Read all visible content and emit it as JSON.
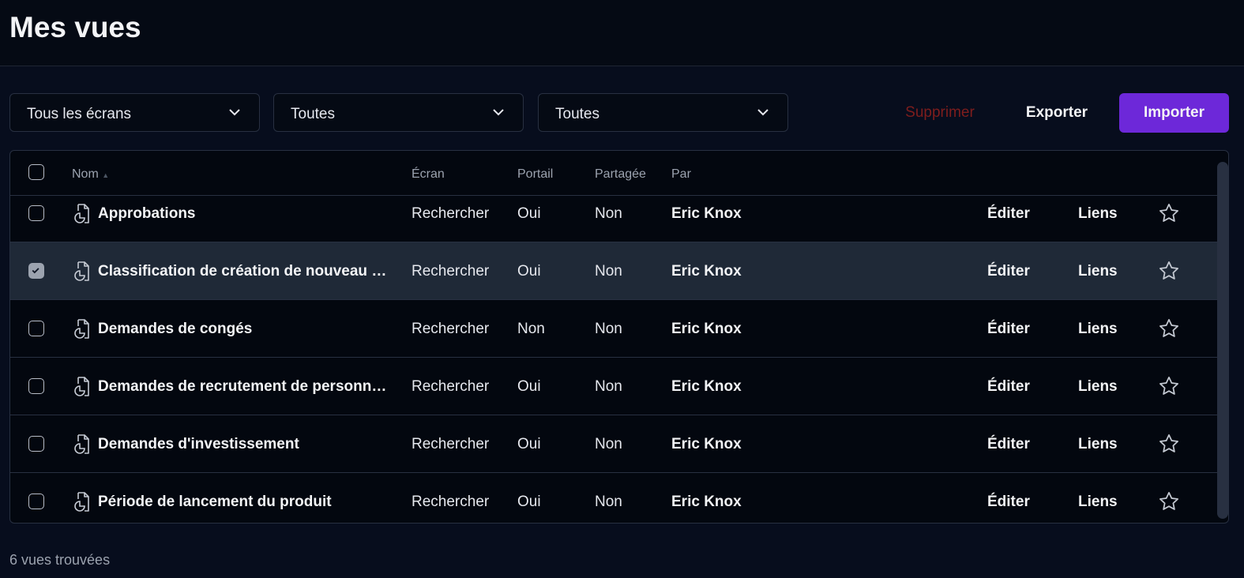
{
  "header": {
    "title": "Mes vues"
  },
  "filters": [
    {
      "value": "Tous les écrans"
    },
    {
      "value": "Toutes"
    },
    {
      "value": "Toutes"
    }
  ],
  "actions": {
    "delete": "Supprimer",
    "export": "Exporter",
    "import": "Importer"
  },
  "colors": {
    "accent": "#6d28d9",
    "danger": "#7f1d1d",
    "selected_row": "#1f2937"
  },
  "table": {
    "columns": {
      "name": "Nom",
      "screen": "Écran",
      "portal": "Portail",
      "shared": "Partagée",
      "by": "Par"
    },
    "sort": {
      "column": "Nom",
      "direction": "ascending"
    },
    "rows": [
      {
        "name": "Approbations",
        "screen": "Rechercher",
        "portal": "Oui",
        "shared": "Non",
        "by": "Eric Knox",
        "edit": "Éditer",
        "links": "Liens",
        "checked": false
      },
      {
        "name": "Classification de création de nouveau p...",
        "screen": "Rechercher",
        "portal": "Oui",
        "shared": "Non",
        "by": "Eric Knox",
        "edit": "Éditer",
        "links": "Liens",
        "checked": true
      },
      {
        "name": "Demandes de congés",
        "screen": "Rechercher",
        "portal": "Non",
        "shared": "Non",
        "by": "Eric Knox",
        "edit": "Éditer",
        "links": "Liens",
        "checked": false
      },
      {
        "name": "Demandes de recrutement de personne...",
        "screen": "Rechercher",
        "portal": "Oui",
        "shared": "Non",
        "by": "Eric Knox",
        "edit": "Éditer",
        "links": "Liens",
        "checked": false
      },
      {
        "name": "Demandes d'investissement",
        "screen": "Rechercher",
        "portal": "Oui",
        "shared": "Non",
        "by": "Eric Knox",
        "edit": "Éditer",
        "links": "Liens",
        "checked": false
      },
      {
        "name": "Période de lancement du produit",
        "screen": "Rechercher",
        "portal": "Oui",
        "shared": "Non",
        "by": "Eric Knox",
        "edit": "Éditer",
        "links": "Liens",
        "checked": false
      }
    ]
  },
  "footer": {
    "count": "6 vues trouvées"
  }
}
